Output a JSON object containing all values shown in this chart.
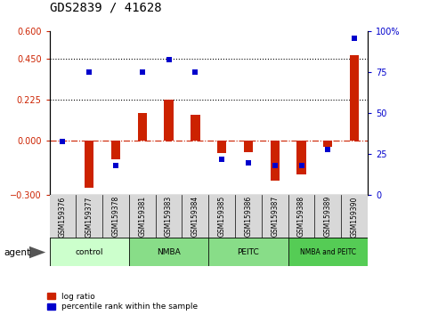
{
  "title": "GDS2839 / 41628",
  "samples": [
    "GSM159376",
    "GSM159377",
    "GSM159378",
    "GSM159381",
    "GSM159383",
    "GSM159384",
    "GSM159385",
    "GSM159386",
    "GSM159387",
    "GSM159388",
    "GSM159389",
    "GSM159390"
  ],
  "log_ratio": [
    0.0,
    -0.26,
    -0.1,
    0.15,
    0.225,
    0.14,
    -0.07,
    -0.065,
    -0.22,
    -0.185,
    -0.035,
    0.47
  ],
  "percentile": [
    33,
    75,
    18,
    75,
    83,
    75,
    22,
    20,
    18,
    18,
    28,
    96
  ],
  "ylim_left": [
    -0.3,
    0.6
  ],
  "ylim_right": [
    0,
    100
  ],
  "yticks_left": [
    -0.3,
    0,
    0.225,
    0.45,
    0.6
  ],
  "yticks_right": [
    0,
    25,
    50,
    75,
    100
  ],
  "hlines": [
    0.45,
    0.225
  ],
  "bar_color": "#cc2200",
  "dot_color": "#0000cc",
  "zero_line_color": "#cc2200",
  "bar_width": 0.35,
  "dot_size": 18,
  "tick_label_color_left": "#cc2200",
  "tick_label_color_right": "#0000cc",
  "agent_label": "agent",
  "legend_red": "log ratio",
  "legend_blue": "percentile rank within the sample",
  "group_labels": [
    "control",
    "NMBA",
    "PEITC",
    "NMBA and PEITC"
  ],
  "group_ranges": [
    [
      0,
      3
    ],
    [
      3,
      6
    ],
    [
      6,
      9
    ],
    [
      9,
      12
    ]
  ],
  "group_colors": [
    "#ccffcc",
    "#88dd88",
    "#88dd88",
    "#55cc55"
  ]
}
